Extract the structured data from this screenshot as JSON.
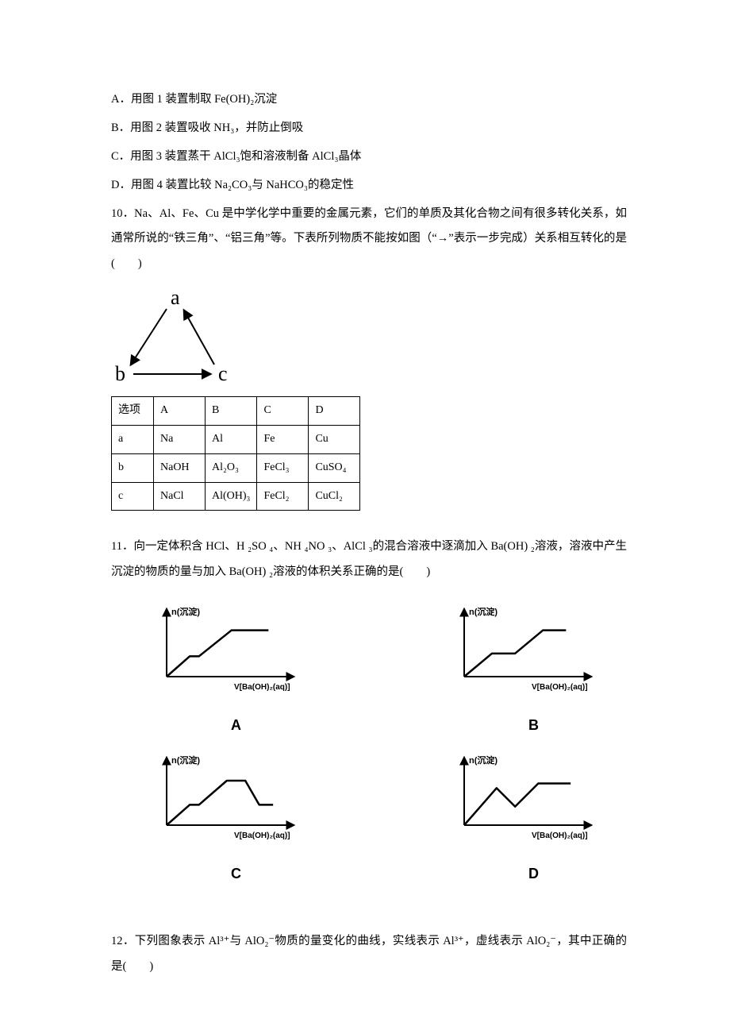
{
  "options9": {
    "A": "A．用图 1 装置制取 Fe(OH)₂沉淀",
    "B": "B．用图 2 装置吸收 NH₃，并防止倒吸",
    "C": "C．用图 3 装置蒸干 AlCl₃饱和溶液制备 AlCl₃晶体",
    "D": "D．用图 4 装置比较 Na₂CO₃与 NaHCO₃的稳定性"
  },
  "q10": {
    "text": "10．Na、Al、Fe、Cu 是中学化学中重要的金属元素，它们的单质及其化合物之间有很多转化关系，如通常所说的“铁三角”、“铝三角”等。下表所列物质不能按如图（“→”表示一步完成）关系相互转化的是(　　)"
  },
  "triangle": {
    "nodes": [
      "a",
      "b",
      "c"
    ],
    "font_family": "Times New Roman",
    "font_size": 22,
    "stroke": "#000000",
    "stroke_width": 2
  },
  "table": {
    "columns": [
      "选项",
      "A",
      "B",
      "C",
      "D"
    ],
    "rows": [
      [
        "a",
        "Na",
        "Al",
        "Fe",
        "Cu"
      ],
      [
        "b",
        "NaOH",
        "Al₂O₃",
        "FeCl₃",
        "CuSO₄"
      ],
      [
        "c",
        "NaCl",
        "Al(OH)₃",
        "FeCl₂",
        "CuCl₂"
      ]
    ],
    "border_color": "#000000",
    "font_size": 14
  },
  "q11": {
    "text": "11．向一定体积含 HCl、H ₂SO ₄、NH ₄NO ₃、AlCl ₃的混合溶液中逐滴加入 Ba(OH) ₂溶液，溶液中产生沉淀的物质的量与加入 Ba(OH) ₂溶液的体积关系正确的是(　　)"
  },
  "charts": {
    "y_label": "n(沉淀)",
    "x_label": "V[Ba(OH)₂(aq)]",
    "stroke": "#000000",
    "line_width": 2.5,
    "axis_width": 2,
    "items": {
      "A": {
        "label": "A",
        "points": [
          [
            0,
            0
          ],
          [
            25,
            22
          ],
          [
            35,
            22
          ],
          [
            70,
            50
          ],
          [
            110,
            50
          ]
        ]
      },
      "B": {
        "label": "B",
        "points": [
          [
            0,
            0
          ],
          [
            30,
            25
          ],
          [
            55,
            25
          ],
          [
            85,
            50
          ],
          [
            110,
            50
          ]
        ]
      },
      "C": {
        "label": "C",
        "points": [
          [
            0,
            0
          ],
          [
            25,
            22
          ],
          [
            35,
            22
          ],
          [
            65,
            48
          ],
          [
            85,
            48
          ],
          [
            100,
            22
          ],
          [
            115,
            22
          ]
        ]
      },
      "D": {
        "label": "D",
        "points": [
          [
            0,
            0
          ],
          [
            35,
            40
          ],
          [
            55,
            20
          ],
          [
            80,
            45
          ],
          [
            115,
            45
          ]
        ]
      }
    }
  },
  "q12": {
    "text": "12．下列图象表示 Al³⁺与 AlO₂⁻物质的量变化的曲线，实线表示 Al³⁺，虚线表示 AlO₂⁻，其中正确的是(　　)"
  }
}
